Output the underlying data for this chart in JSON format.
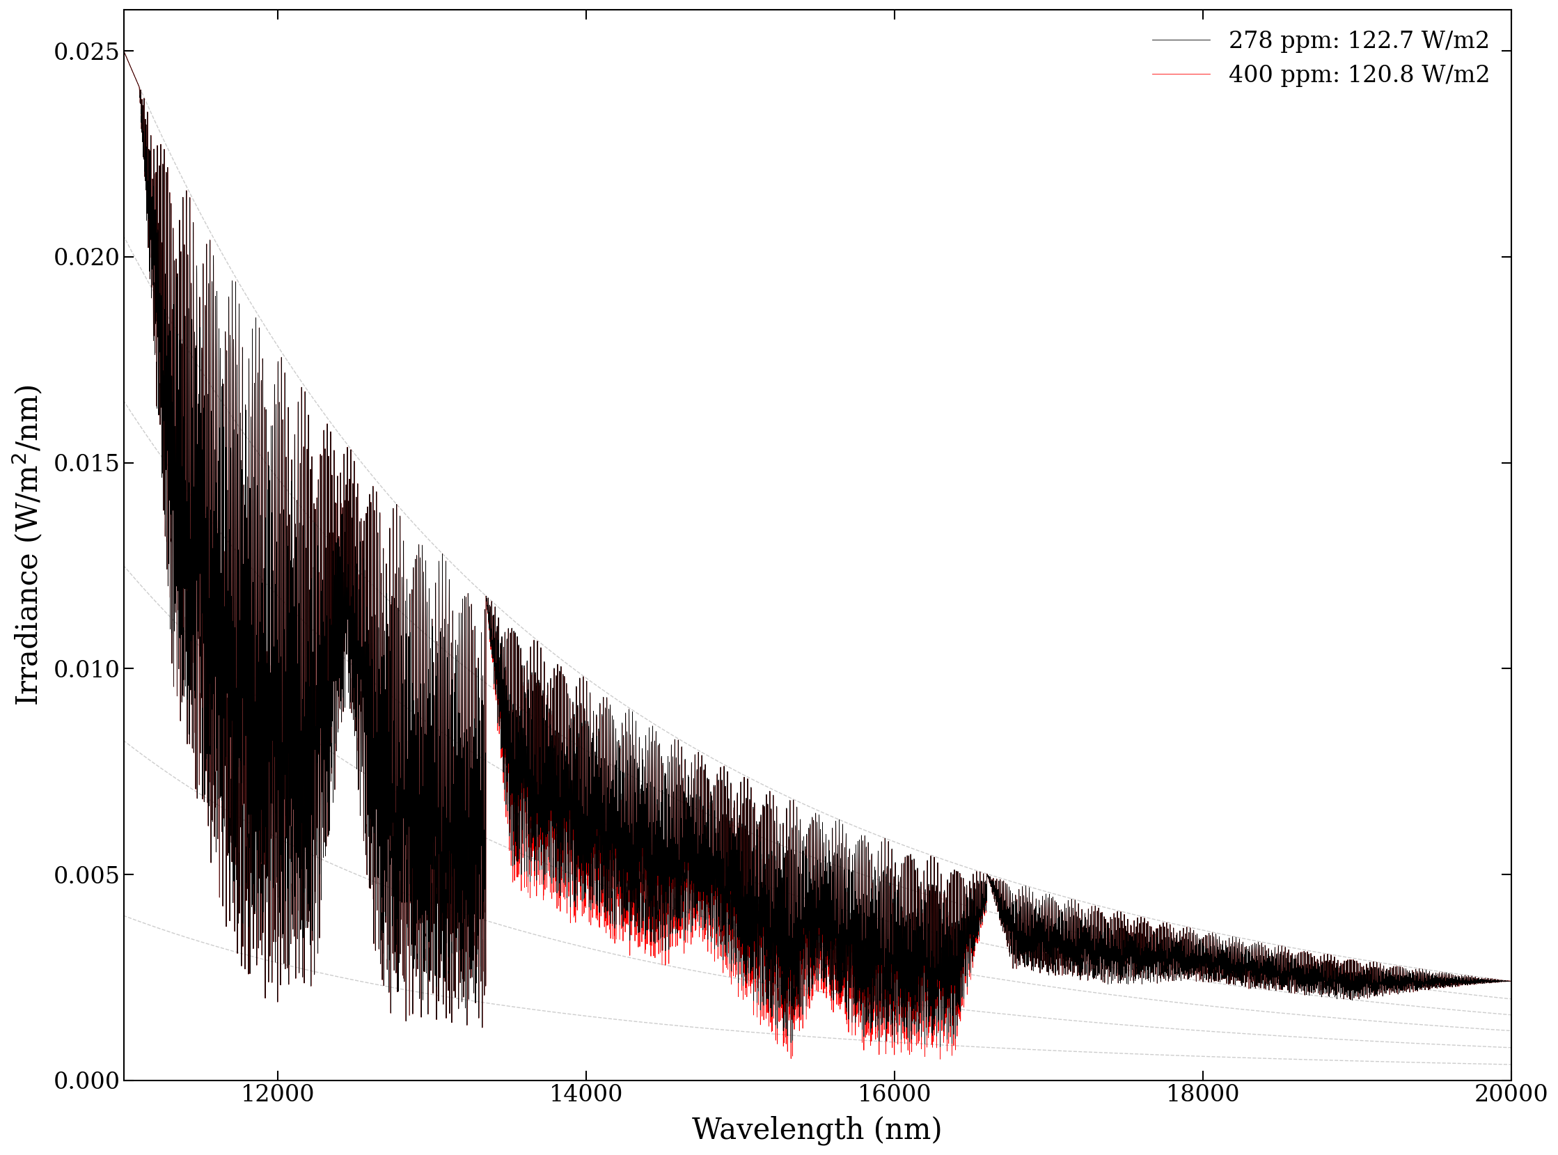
{
  "title": "",
  "xlabel": "Wavelength (nm)",
  "ylabel": "Irradiance (W/$\\mathregular{m^2}$/nm)",
  "xlim": [
    11000,
    20000
  ],
  "ylim": [
    0.0,
    0.026
  ],
  "legend_labels": [
    "278 ppm: 122.7 W/m2",
    "400 ppm: 120.8 W/m2"
  ],
  "legend_colors": [
    "black",
    "red"
  ],
  "background_color": "#ffffff",
  "dashed_line_color": "#c0c0c0",
  "yticks": [
    0.0,
    0.005,
    0.01,
    0.015,
    0.02,
    0.025
  ],
  "xticks": [
    12000,
    14000,
    16000,
    18000,
    20000
  ],
  "ref_curve_scales": [
    0.16,
    0.33,
    0.5,
    0.66,
    0.82,
    1.0
  ],
  "planck_T": 5778,
  "planck_scale_wl": 11000,
  "planck_scale_val": 0.025
}
